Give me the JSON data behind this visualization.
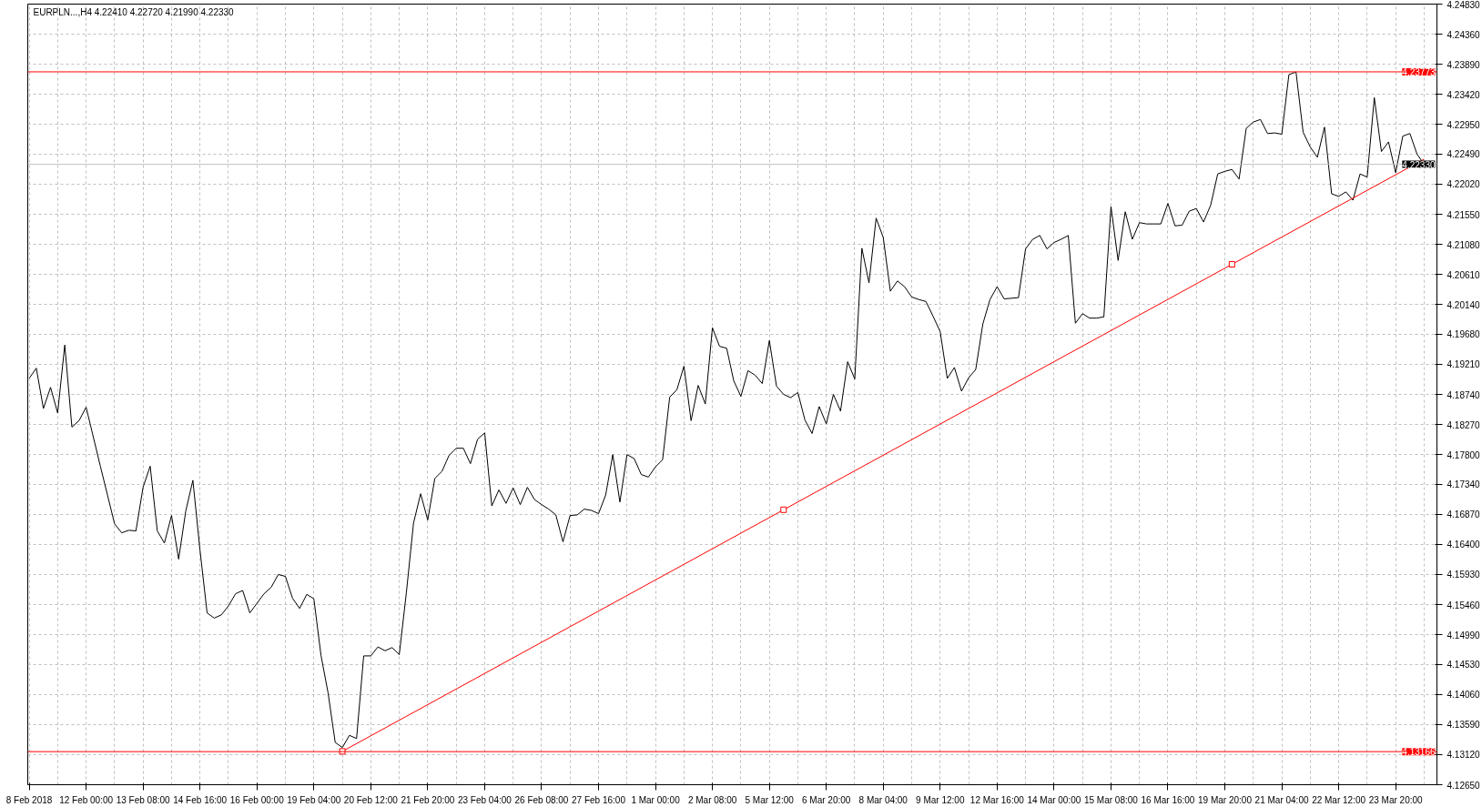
{
  "chart_data": {
    "type": "line",
    "title": "EURPLN...,H4  4.22410 4.22720 4.21990 4.22330",
    "categories": [
      "8 Feb 2018",
      null,
      null,
      null,
      null,
      null,
      null,
      null,
      "12 Feb 00:00",
      null,
      null,
      null,
      null,
      null,
      null,
      null,
      "13 Feb 08:00",
      null,
      null,
      null,
      null,
      null,
      null,
      null,
      "14 Feb 16:00",
      null,
      null,
      null,
      null,
      null,
      null,
      null,
      "16 Feb 00:00",
      null,
      null,
      null,
      null,
      null,
      null,
      null,
      "19 Feb 04:00",
      null,
      null,
      null,
      null,
      null,
      null,
      null,
      "20 Feb 12:00",
      null,
      null,
      null,
      null,
      null,
      null,
      null,
      "21 Feb 20:00",
      null,
      null,
      null,
      null,
      null,
      null,
      null,
      "23 Feb 04:00",
      null,
      null,
      null,
      null,
      null,
      null,
      null,
      "26 Feb 08:00",
      null,
      null,
      null,
      null,
      null,
      null,
      null,
      "27 Feb 16:00",
      null,
      null,
      null,
      null,
      null,
      null,
      null,
      "1 Mar 00:00",
      null,
      null,
      null,
      null,
      null,
      null,
      null,
      "2 Mar 08:00",
      null,
      null,
      null,
      null,
      null,
      null,
      null,
      "5 Mar 12:00",
      null,
      null,
      null,
      null,
      null,
      null,
      null,
      "6 Mar 20:00",
      null,
      null,
      null,
      null,
      null,
      null,
      null,
      "8 Mar 04:00",
      null,
      null,
      null,
      null,
      null,
      null,
      null,
      "9 Mar 12:00",
      null,
      null,
      null,
      null,
      null,
      null,
      null,
      "12 Mar 16:00",
      null,
      null,
      null,
      null,
      null,
      null,
      null,
      "14 Mar 00:00",
      null,
      null,
      null,
      null,
      null,
      null,
      null,
      "15 Mar 08:00",
      null,
      null,
      null,
      null,
      null,
      null,
      null,
      "16 Mar 16:00",
      null,
      null,
      null,
      null,
      null,
      null,
      null,
      "19 Mar 20:00",
      null,
      null,
      null,
      null,
      null,
      null,
      null,
      "21 Mar 04:00",
      null,
      null,
      null,
      null,
      null,
      null,
      null,
      "22 Mar 12:00",
      null,
      null,
      null,
      null,
      null,
      null,
      null,
      "23 Mar 20:00",
      null,
      null,
      null,
      null
    ],
    "ylim": [
      4.1265,
      4.2483
    ],
    "yticks": [
      {
        "value": 4.1265,
        "label": "4.12650"
      },
      {
        "value": 4.1312,
        "label": "4.13120"
      },
      {
        "value": 4.1359,
        "label": "4.13590"
      },
      {
        "value": 4.1406,
        "label": "4.14060"
      },
      {
        "value": 4.1453,
        "label": "4.14530"
      },
      {
        "value": 4.1499,
        "label": "4.14990"
      },
      {
        "value": 4.1546,
        "label": "4.15460"
      },
      {
        "value": 4.1593,
        "label": "4.15930"
      },
      {
        "value": 4.164,
        "label": "4.16400"
      },
      {
        "value": 4.1687,
        "label": "4.16870"
      },
      {
        "value": 4.1734,
        "label": "4.17340"
      },
      {
        "value": 4.178,
        "label": "4.17800"
      },
      {
        "value": 4.1827,
        "label": "4.18270"
      },
      {
        "value": 4.1874,
        "label": "4.18740"
      },
      {
        "value": 4.1921,
        "label": "4.19210"
      },
      {
        "value": 4.1968,
        "label": "4.19680"
      },
      {
        "value": 4.2014,
        "label": "4.20140"
      },
      {
        "value": 4.2061,
        "label": "4.20610"
      },
      {
        "value": 4.2108,
        "label": "4.21080"
      },
      {
        "value": 4.2155,
        "label": "4.21550"
      },
      {
        "value": 4.2202,
        "label": "4.22020"
      },
      {
        "value": 4.2249,
        "label": "4.22490"
      },
      {
        "value": 4.2295,
        "label": "4.22950"
      },
      {
        "value": 4.2342,
        "label": "4.23420"
      },
      {
        "value": 4.2389,
        "label": "4.23890"
      },
      {
        "value": 4.2436,
        "label": "4.24360"
      },
      {
        "value": 4.2483,
        "label": "4.24830"
      }
    ],
    "grid": true,
    "ref_lines": [
      {
        "axis": "y",
        "value": 4.23773,
        "label": "4.23773",
        "color": "#ff0000",
        "line_style": "solid"
      },
      {
        "axis": "y",
        "value": 4.2233,
        "label": "4.22330",
        "color": "#c0c0c0",
        "line_style": "solid"
      },
      {
        "axis": "y",
        "value": 4.13166,
        "label": "4.13166",
        "color": "#ff0000",
        "line_style": "solid"
      }
    ],
    "series": [
      {
        "color": "#000000",
        "values": [
          4.1899,
          4.1915,
          4.1852,
          4.1885,
          4.1845,
          4.1951,
          4.1823,
          4.1833,
          4.1854,
          4.1808,
          4.1762,
          4.1717,
          4.1672,
          4.1658,
          4.1662,
          4.1661,
          4.1729,
          4.1762,
          4.1661,
          4.1642,
          4.1685,
          4.1617,
          4.1692,
          4.174,
          4.1631,
          4.1533,
          4.1525,
          4.153,
          4.1544,
          4.1563,
          4.1568,
          4.1533,
          4.1548,
          4.1563,
          4.1573,
          4.1593,
          4.159,
          4.1556,
          4.154,
          4.1562,
          4.1555,
          4.1467,
          4.1408,
          4.1331,
          4.1323,
          4.1342,
          4.1337,
          4.1466,
          4.1466,
          4.148,
          4.1474,
          4.1479,
          4.1468,
          4.1565,
          4.1673,
          4.1719,
          4.1678,
          4.1743,
          4.1754,
          4.1779,
          4.179,
          4.179,
          4.1766,
          4.1804,
          4.1814,
          4.17,
          4.1725,
          4.1704,
          4.1728,
          4.1702,
          4.1729,
          4.171,
          4.1702,
          4.1695,
          4.1686,
          4.1644,
          4.1685,
          4.1686,
          4.1695,
          4.1693,
          4.1688,
          4.1717,
          4.178,
          4.1706,
          4.178,
          4.1774,
          4.1749,
          4.1745,
          4.1761,
          4.1772,
          4.187,
          4.1881,
          4.1918,
          4.1833,
          4.1888,
          4.1859,
          4.1978,
          4.1949,
          4.1946,
          4.1895,
          4.1871,
          4.1911,
          4.1904,
          4.1891,
          4.1958,
          4.1887,
          4.1874,
          4.1869,
          4.1877,
          4.1834,
          4.1813,
          4.1855,
          4.1828,
          4.1874,
          4.1848,
          4.1925,
          4.1898,
          4.2102,
          4.2048,
          4.2149,
          4.2119,
          4.2035,
          4.2051,
          4.2042,
          4.2026,
          4.2022,
          4.2019,
          4.1996,
          4.1972,
          4.1899,
          4.1916,
          4.1879,
          4.19,
          4.1913,
          4.1984,
          4.2022,
          4.2042,
          4.2023,
          4.2024,
          4.2025,
          4.2101,
          4.2116,
          4.2122,
          4.2101,
          4.2111,
          4.2116,
          4.2122,
          4.1985,
          4.2,
          4.1993,
          4.1993,
          4.1995,
          4.2167,
          4.2083,
          4.2159,
          4.2116,
          4.2142,
          4.214,
          4.214,
          4.214,
          4.2172,
          4.2137,
          4.2138,
          4.216,
          4.2164,
          4.2143,
          4.2169,
          4.2218,
          4.2222,
          4.2225,
          4.221,
          4.2289,
          4.2299,
          4.2303,
          4.2281,
          4.2282,
          4.228,
          4.2373,
          4.2377,
          4.2283,
          4.226,
          4.2244,
          4.2291,
          4.2187,
          4.2183,
          4.219,
          4.2177,
          4.2218,
          4.2213,
          4.2337,
          4.2253,
          4.2268,
          4.222,
          4.2277,
          4.2281,
          4.2249,
          4.2233
        ]
      },
      {
        "type": "line",
        "color": "#ff0000",
        "values": [
          null,
          null,
          null,
          null,
          null,
          null,
          null,
          null,
          null,
          null,
          null,
          null,
          null,
          null,
          null,
          null,
          null,
          null,
          null,
          null,
          null,
          null,
          null,
          null,
          null,
          null,
          null,
          null,
          null,
          null,
          null,
          null,
          null,
          null,
          null,
          null,
          null,
          null,
          null,
          null,
          null,
          null,
          null,
          null,
          4.1317,
          null,
          null,
          null,
          null,
          null,
          null,
          null,
          null,
          null,
          null,
          null,
          null,
          null,
          null,
          null,
          null,
          null,
          null,
          null,
          null,
          null,
          null,
          null,
          null,
          null,
          null,
          null,
          null,
          null,
          null,
          null,
          null,
          null,
          null,
          null,
          null,
          null,
          null,
          null,
          null,
          null,
          null,
          null,
          null,
          null,
          null,
          null,
          null,
          null,
          null,
          null,
          null,
          null,
          null,
          null,
          null,
          null,
          null,
          null,
          null,
          null,
          4.1694,
          null,
          null,
          null,
          null,
          null,
          null,
          null,
          null,
          null,
          null,
          null,
          null,
          null,
          null,
          null,
          null,
          null,
          null,
          null,
          null,
          null,
          null,
          null,
          null,
          null,
          null,
          null,
          null,
          null,
          null,
          null,
          null,
          null,
          null,
          null,
          null,
          null,
          null,
          null,
          null,
          null,
          null,
          null,
          null,
          null,
          null,
          null,
          null,
          null,
          null,
          null,
          null,
          null,
          null,
          null,
          null,
          null,
          null,
          null,
          null,
          null,
          null,
          4.2077,
          null,
          null,
          null,
          null,
          null,
          null,
          null,
          null,
          null,
          null,
          null,
          null,
          null,
          null,
          null,
          null,
          null,
          null,
          null,
          null,
          null,
          null,
          null,
          null,
          null,
          null,
          4.2241
        ]
      },
      {
        "type": "scatter",
        "color": "#ff0000",
        "marker": "square",
        "values": [
          null,
          null,
          null,
          null,
          null,
          null,
          null,
          null,
          null,
          null,
          null,
          null,
          null,
          null,
          null,
          null,
          null,
          null,
          null,
          null,
          null,
          null,
          null,
          null,
          null,
          null,
          null,
          null,
          null,
          null,
          null,
          null,
          null,
          null,
          null,
          null,
          null,
          null,
          null,
          null,
          null,
          null,
          null,
          null,
          4.1317,
          null,
          null,
          null,
          null,
          null,
          null,
          null,
          null,
          null,
          null,
          null,
          null,
          null,
          null,
          null,
          null,
          null,
          null,
          null,
          null,
          null,
          null,
          null,
          null,
          null,
          null,
          null,
          null,
          null,
          null,
          null,
          null,
          null,
          null,
          null,
          null,
          null,
          null,
          null,
          null,
          null,
          null,
          null,
          null,
          null,
          null,
          null,
          null,
          null,
          null,
          null,
          null,
          null,
          null,
          null,
          null,
          null,
          null,
          null,
          null,
          null,
          4.1694,
          null,
          null,
          null,
          null,
          null,
          null,
          null,
          null,
          null,
          null,
          null,
          null,
          null,
          null,
          null,
          null,
          null,
          null,
          null,
          null,
          null,
          null,
          null,
          null,
          null,
          null,
          null,
          null,
          null,
          null,
          null,
          null,
          null,
          null,
          null,
          null,
          null,
          null,
          null,
          null,
          null,
          null,
          null,
          null,
          null,
          null,
          null,
          null,
          null,
          null,
          null,
          null,
          null,
          null,
          null,
          null,
          null,
          null,
          null,
          null,
          null,
          null,
          4.2077,
          null,
          null,
          null,
          null,
          null,
          null,
          null,
          null,
          null,
          null,
          null,
          null,
          null,
          null,
          null,
          null,
          null,
          null,
          null,
          null,
          null,
          null,
          null,
          null,
          null,
          null,
          null
        ]
      }
    ]
  }
}
